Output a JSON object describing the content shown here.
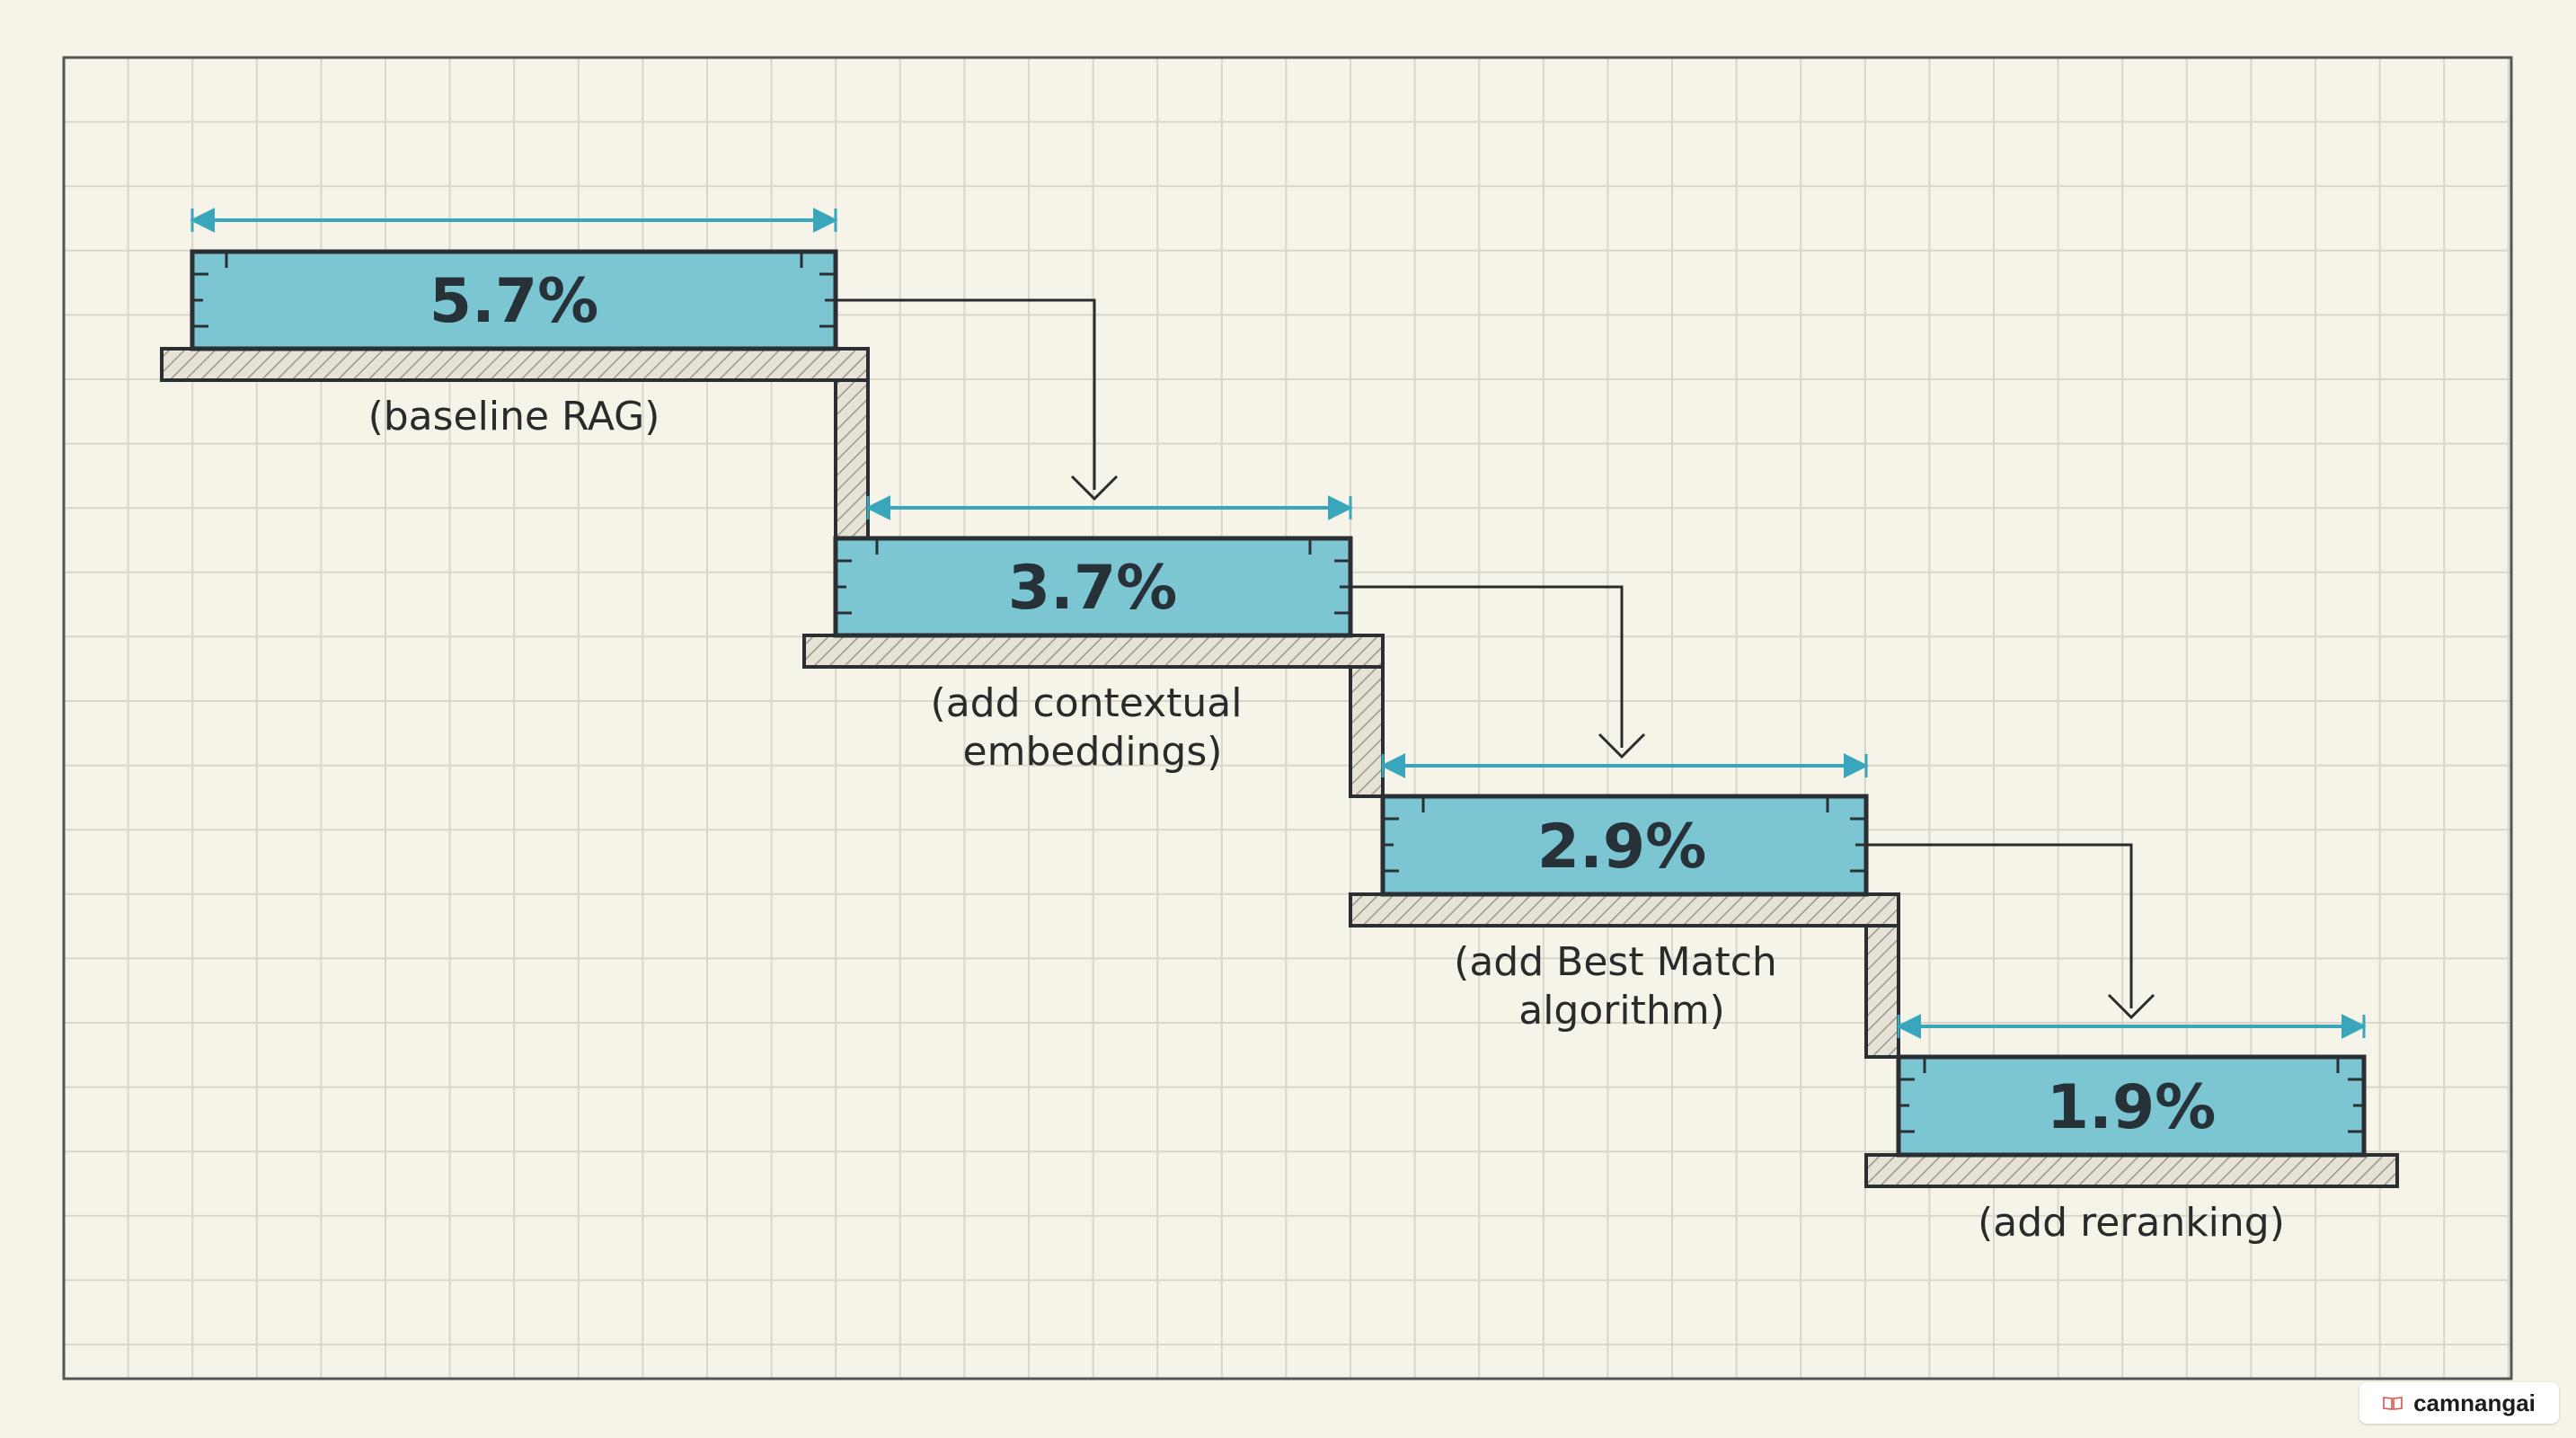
{
  "colors": {
    "background": "#f6f3e8",
    "grid": "#d9d6cb",
    "frame": "#555555",
    "block_fill": "#7cc6d4",
    "block_stroke": "#2b2f33",
    "dimension": "#3aa6bb",
    "shelf_fill": "#e6e2d6",
    "hatch": "#9a978d",
    "arrow": "#2b2b2b"
  },
  "steps": [
    {
      "value": "5.7%",
      "label_lines": [
        "(baseline RAG)"
      ]
    },
    {
      "value": "3.7%",
      "label_lines": [
        "(add contextual",
        "embeddings)"
      ]
    },
    {
      "value": "2.9%",
      "label_lines": [
        "(add Best Match",
        "algorithm)"
      ]
    },
    {
      "value": "1.9%",
      "label_lines": [
        "(add reranking)"
      ]
    }
  ],
  "badge": {
    "text": "camnangai",
    "icon": "book-icon"
  }
}
